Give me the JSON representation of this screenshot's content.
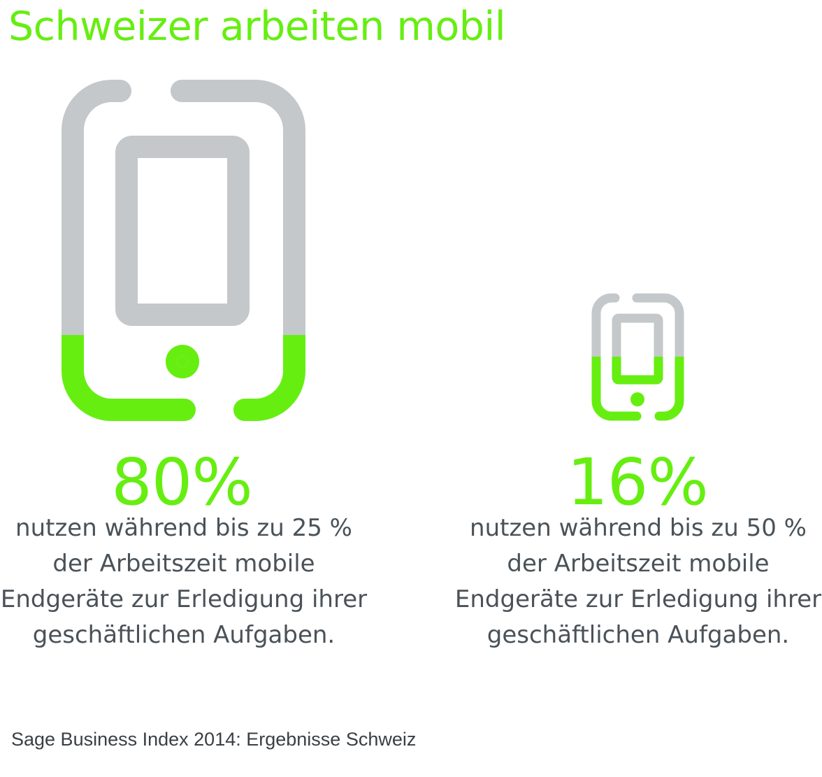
{
  "title": "Schweizer arbeiten mobil",
  "colors": {
    "accent": "#66ee11",
    "icon_gray": "#c4c8ca",
    "text": "#4a5258",
    "source_text": "#3a3f44"
  },
  "stats": [
    {
      "icon": "smartphone-icon",
      "fill_fraction": 0.25,
      "value": "80%",
      "description": "nutzen während bis zu 25 %\nder Arbeitszeit mobile\nEndgeräte zur Erledigung ihrer\ngeschäftlichen Aufgaben."
    },
    {
      "icon": "smartphone-icon",
      "fill_fraction": 0.5,
      "value": "16%",
      "description": "nutzen während bis zu 50 %\nder Arbeitszeit mobile\nEndgeräte zur Erledigung ihrer\ngeschäftlichen Aufgaben."
    }
  ],
  "source": "Sage Business Index 2014: Ergebnisse Schweiz"
}
